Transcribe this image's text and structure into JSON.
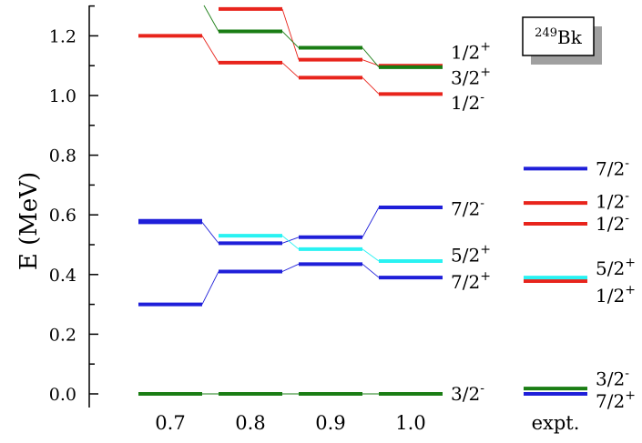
{
  "chart_data": {
    "type": "level-scheme",
    "nucleus_label": {
      "sup": "249",
      "base": "Bk"
    },
    "ylabel": "E (MeV)",
    "ylim": [
      -0.05,
      1.3
    ],
    "yticks": [
      "0.0",
      "0.2",
      "0.4",
      "0.6",
      "0.8",
      "1.0",
      "1.2"
    ],
    "categories": [
      "0.7",
      "0.8",
      "0.9",
      "1.0",
      "expt."
    ],
    "colors": {
      "red": "#e8241c",
      "green": "#1a7d14",
      "blue": "#1f1fd9",
      "cyan": "#29f2f2"
    },
    "levels": [
      {
        "name": "3/2-",
        "color": "green",
        "energies": [
          0.0,
          0.0,
          0.0,
          0.0
        ]
      },
      {
        "name": "7/2+ (a)",
        "color": "blue",
        "energies": [
          0.3,
          0.41,
          0.435,
          0.39
        ]
      },
      {
        "name": "7/2- (a)",
        "color": "blue",
        "energies": [
          0.575,
          0.505,
          0.525,
          0.625
        ]
      },
      {
        "name": "7/2- (b)",
        "color": "blue",
        "energies": [
          0.58
        ]
      },
      {
        "name": "5/2+",
        "color": "cyan",
        "energies": [
          null,
          0.53,
          0.485,
          0.445
        ]
      },
      {
        "name": "1/2-",
        "color": "red",
        "energies": [
          1.2,
          1.11,
          1.06,
          1.005
        ]
      },
      {
        "name": "3/2+",
        "color": "red",
        "energies": [
          null,
          1.29,
          1.12,
          1.1
        ]
      },
      {
        "name": "1/2+",
        "color": "green",
        "energies": [
          null,
          1.215,
          1.16,
          1.095
        ]
      }
    ],
    "level_labels": [
      {
        "text": "3/2",
        "sign": "-",
        "y": 0.0
      },
      {
        "text": "7/2",
        "sign": "+",
        "y": 0.375
      },
      {
        "text": "5/2",
        "sign": "+",
        "y": 0.465
      },
      {
        "text": "7/2",
        "sign": "-",
        "y": 0.62
      },
      {
        "text": "1/2",
        "sign": "-",
        "y": 0.975
      },
      {
        "text": "3/2",
        "sign": "+",
        "y": 1.06
      },
      {
        "text": "1/2",
        "sign": "+",
        "y": 1.145
      }
    ],
    "expt_levels": [
      {
        "name": "7/2+",
        "color": "blue",
        "energy": 0.0
      },
      {
        "name": "3/2-",
        "color": "green",
        "energy": 0.018
      },
      {
        "name": "1/2+",
        "color": "red",
        "energy": 0.378
      },
      {
        "name": "5/2+",
        "color": "cyan",
        "energy": 0.39
      },
      {
        "name": "1/2-",
        "color": "red",
        "energy": 0.57
      },
      {
        "name": "1/2-",
        "color": "red",
        "energy": 0.64
      },
      {
        "name": "7/2-",
        "color": "blue",
        "energy": 0.755
      }
    ],
    "expt_labels": [
      {
        "text": "7/2",
        "sign": "+",
        "y": -0.025
      },
      {
        "text": "3/2",
        "sign": "-",
        "y": 0.05
      },
      {
        "text": "1/2",
        "sign": "+",
        "y": 0.33
      },
      {
        "text": "5/2",
        "sign": "+",
        "y": 0.42
      },
      {
        "text": "1/2",
        "sign": "-",
        "y": 0.57
      },
      {
        "text": "1/2",
        "sign": "-",
        "y": 0.645
      },
      {
        "text": "7/2",
        "sign": "-",
        "y": 0.755
      }
    ]
  }
}
